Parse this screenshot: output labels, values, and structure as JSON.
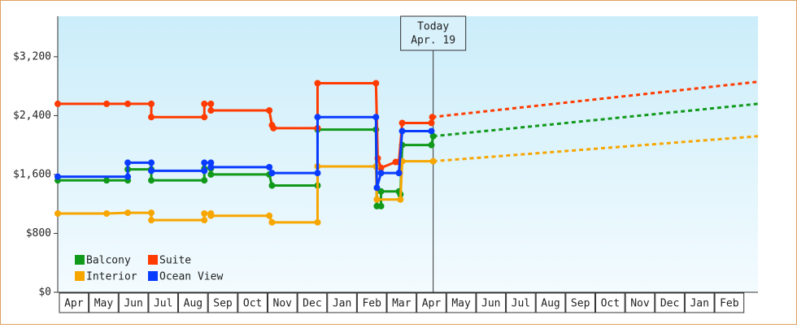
{
  "chart_data": {
    "type": "step-line",
    "xlim": [
      0,
      23.5
    ],
    "xticks": [
      {
        "value": 0.5,
        "label": "Apr"
      },
      {
        "value": 1.5,
        "label": "May"
      },
      {
        "value": 2.5,
        "label": "Jun"
      },
      {
        "value": 3.5,
        "label": "Jul"
      },
      {
        "value": 4.5,
        "label": "Aug"
      },
      {
        "value": 5.5,
        "label": "Sep"
      },
      {
        "value": 6.5,
        "label": "Oct"
      },
      {
        "value": 7.5,
        "label": "Nov"
      },
      {
        "value": 8.5,
        "label": "Dec"
      },
      {
        "value": 9.5,
        "label": "Jan"
      },
      {
        "value": 10.5,
        "label": "Feb"
      },
      {
        "value": 11.5,
        "label": "Mar"
      },
      {
        "value": 12.5,
        "label": "Apr"
      },
      {
        "value": 13.5,
        "label": "May"
      },
      {
        "value": 14.5,
        "label": "Jun"
      },
      {
        "value": 15.5,
        "label": "Jul"
      },
      {
        "value": 16.5,
        "label": "Aug"
      },
      {
        "value": 17.5,
        "label": "Sep"
      },
      {
        "value": 18.5,
        "label": "Oct"
      },
      {
        "value": 19.5,
        "label": "Nov"
      },
      {
        "value": 20.5,
        "label": "Dec"
      },
      {
        "value": 21.5,
        "label": "Jan"
      },
      {
        "value": 22.5,
        "label": "Feb"
      }
    ],
    "ylim": [
      0,
      3750
    ],
    "yticks": [
      {
        "value": 0,
        "label": "$0"
      },
      {
        "value": 800,
        "label": "$800"
      },
      {
        "value": 1600,
        "label": "$1,600"
      },
      {
        "value": 2400,
        "label": "$2,400"
      },
      {
        "value": 3200,
        "label": "$3,200"
      }
    ],
    "grid": false,
    "legend": "lower left",
    "today": {
      "x": 12.6,
      "label": "Today",
      "date": "Apr. 19"
    },
    "series": [
      {
        "name": "Balcony",
        "color": "#11991a",
        "x": [
          0,
          1.64,
          2.35,
          2.35,
          3.14,
          3.14,
          4.92,
          4.92,
          5.14,
          5.14,
          7.1,
          7.19,
          8.72,
          8.72,
          10.68,
          10.71,
          10.85,
          10.85,
          11.45,
          11.5,
          11.56,
          12.54,
          12.6
        ],
        "values": [
          1520,
          1520,
          1520,
          1670,
          1670,
          1520,
          1520,
          1680,
          1680,
          1600,
          1600,
          1450,
          1450,
          2210,
          2210,
          1170,
          1170,
          1370,
          1370,
          1330,
          2000,
          2000,
          2120
        ],
        "forecast_x": [
          12.6,
          23.5
        ],
        "forecast_values": [
          2120,
          2560
        ]
      },
      {
        "name": "Suite",
        "color": "#ff3b00",
        "x": [
          0,
          1.64,
          2.35,
          3.14,
          3.14,
          4.92,
          4.92,
          5.14,
          5.14,
          7.1,
          7.19,
          7.24,
          8.72,
          8.72,
          10.68,
          10.74,
          10.85,
          11.34,
          11.45,
          11.56,
          12.54,
          12.57
        ],
        "values": [
          2560,
          2560,
          2560,
          2560,
          2380,
          2380,
          2560,
          2560,
          2470,
          2470,
          2270,
          2230,
          2230,
          2840,
          2840,
          1820,
          1690,
          1770,
          1770,
          2300,
          2300,
          2380
        ],
        "forecast_x": [
          12.57,
          23.5
        ],
        "forecast_values": [
          2380,
          2860
        ]
      },
      {
        "name": "Interior",
        "color": "#f7a600",
        "x": [
          0,
          1.64,
          2.35,
          3.14,
          3.14,
          4.92,
          4.92,
          5.14,
          5.14,
          7.1,
          7.19,
          8.72,
          8.72,
          10.68,
          10.71,
          11.5,
          11.56,
          12.6
        ],
        "values": [
          1070,
          1070,
          1080,
          1080,
          980,
          980,
          1070,
          1070,
          1040,
          1040,
          950,
          950,
          1710,
          1710,
          1260,
          1260,
          1780,
          1780
        ],
        "forecast_x": [
          12.6,
          23.5
        ],
        "forecast_values": [
          1780,
          2120
        ]
      },
      {
        "name": "Ocean View",
        "color": "#0a3cff",
        "x": [
          0,
          2.35,
          2.35,
          3.14,
          3.14,
          4.92,
          4.92,
          5.14,
          5.14,
          7.1,
          7.19,
          8.72,
          8.72,
          10.68,
          10.71,
          10.85,
          11.45,
          11.56,
          12.54
        ],
        "values": [
          1570,
          1570,
          1760,
          1760,
          1650,
          1650,
          1760,
          1760,
          1700,
          1700,
          1620,
          1620,
          2380,
          2380,
          1420,
          1620,
          1620,
          2190,
          2190
        ]
      }
    ]
  }
}
